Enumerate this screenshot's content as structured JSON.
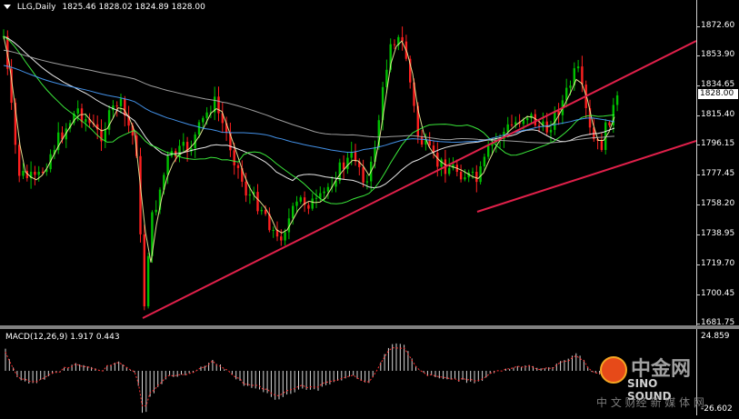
{
  "header": {
    "symbol_label": "LLG,Daily",
    "ohlc": "1825.46 1828.02 1824.89 1828.00"
  },
  "macd": {
    "label": "MACD(12,26,9) 1.917 0.443",
    "axis_top": "24.859",
    "axis_bottom": "-26.602"
  },
  "price_axis": {
    "ticks": [
      "1872.60",
      "1853.90",
      "1834.65",
      "1815.40",
      "1796.15",
      "1777.45",
      "1758.20",
      "1738.95",
      "1719.70",
      "1700.45",
      "1681.75"
    ],
    "current_price": "1828.00"
  },
  "watermark": {
    "cn": "中金网",
    "en": "SINO SOUND",
    "slogan": "中 文 财经 新 媒 体 网"
  },
  "colors": {
    "bull": "#00c000",
    "bear": "#ff2020",
    "background": "#000000",
    "trendline": "#e0204a"
  }
}
